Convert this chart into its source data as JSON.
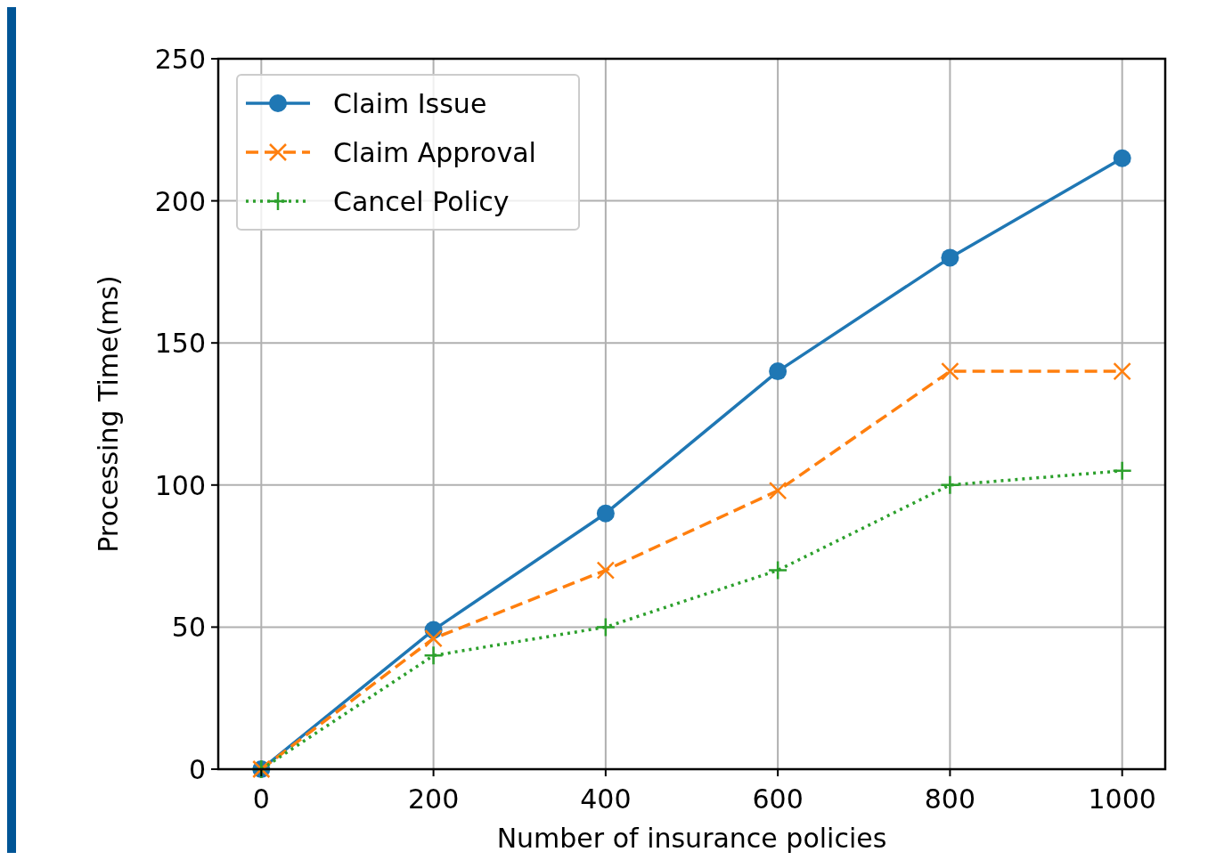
{
  "chart_data": {
    "type": "line",
    "xlabel": "Number of insurance policies",
    "ylabel": "Processing Time(ms)",
    "x": [
      0,
      200,
      400,
      600,
      800,
      1000
    ],
    "series": [
      {
        "name": "Claim Issue",
        "color": "#1f77b4",
        "values": [
          0,
          49,
          90,
          140,
          180,
          215
        ],
        "marker": "circle",
        "line_style": "solid"
      },
      {
        "name": "Claim Approval",
        "color": "#ff7f0e",
        "values": [
          0,
          46,
          70,
          98,
          140,
          140
        ],
        "marker": "x",
        "line_style": "dashed"
      },
      {
        "name": "Cancel Policy",
        "color": "#2ca02c",
        "values": [
          0,
          40,
          50,
          70,
          100,
          105
        ],
        "marker": "cross",
        "line_style": "dotted"
      }
    ],
    "xlim": [
      -50,
      1050
    ],
    "xticks": [
      0,
      200,
      400,
      600,
      800,
      1000
    ],
    "ylim": [
      0,
      250
    ],
    "yticks": [
      0,
      50,
      100,
      150,
      200,
      250
    ],
    "grid": true,
    "legend": "top left"
  }
}
